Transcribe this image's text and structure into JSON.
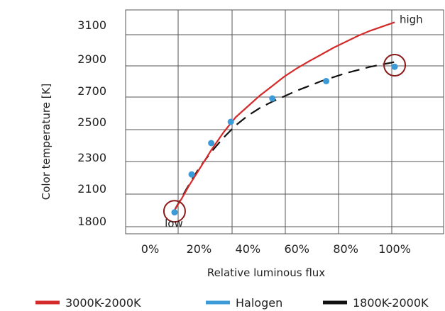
{
  "chart_data": {
    "type": "line",
    "xlabel": "Relative luminous flux",
    "ylabel": "Color temperature [K]",
    "x_ticks": [
      "0%",
      "20%",
      "40%",
      "60%",
      "80%",
      "100%"
    ],
    "x_tick_values": [
      0,
      20,
      40,
      60,
      80,
      100
    ],
    "y_ticks": [
      "1800",
      "2100",
      "2300",
      "2500",
      "2700",
      "2900",
      "3100"
    ],
    "y_tick_values": [
      1800,
      2100,
      2300,
      2500,
      2700,
      2900,
      3100
    ],
    "xlim": [
      -10,
      120
    ],
    "grid": true,
    "legend_position": "bottom",
    "annotations": [
      {
        "text": "high",
        "x": 102,
        "y": 3110
      },
      {
        "text": "low",
        "x": 6,
        "y": 1745
      }
    ],
    "highlight_circles": [
      {
        "x": 10,
        "y": 1890
      },
      {
        "x": 100,
        "y": 2860
      }
    ],
    "series": [
      {
        "name": "3000K-2000K",
        "style": "solid",
        "color": "#d42a2a",
        "x": [
          10,
          13,
          16,
          20,
          25,
          30,
          35,
          40,
          45,
          50,
          55,
          60,
          65,
          70,
          75,
          80,
          85,
          90,
          95,
          100
        ],
        "y": [
          1900,
          2010,
          2120,
          2220,
          2340,
          2440,
          2530,
          2600,
          2670,
          2730,
          2790,
          2840,
          2885,
          2925,
          2965,
          3000,
          3035,
          3065,
          3090,
          3115
        ]
      },
      {
        "name": "Halogen",
        "style": "markers",
        "color": "#3a9bd8",
        "x": [
          10,
          17,
          25,
          33,
          50,
          72,
          100
        ],
        "y": [
          1880,
          2190,
          2380,
          2500,
          2650,
          2760,
          2850
        ]
      },
      {
        "name": "1800K-2000K",
        "style": "dashed",
        "color": "#111111",
        "x": [
          10,
          12,
          15,
          20,
          25,
          30,
          35,
          40,
          45,
          50,
          55,
          60,
          65,
          70,
          75,
          80,
          85,
          90,
          95,
          100
        ],
        "y": [
          1900,
          1980,
          2100,
          2230,
          2330,
          2410,
          2480,
          2540,
          2590,
          2630,
          2665,
          2700,
          2730,
          2760,
          2785,
          2810,
          2830,
          2850,
          2865,
          2880
        ]
      }
    ]
  }
}
